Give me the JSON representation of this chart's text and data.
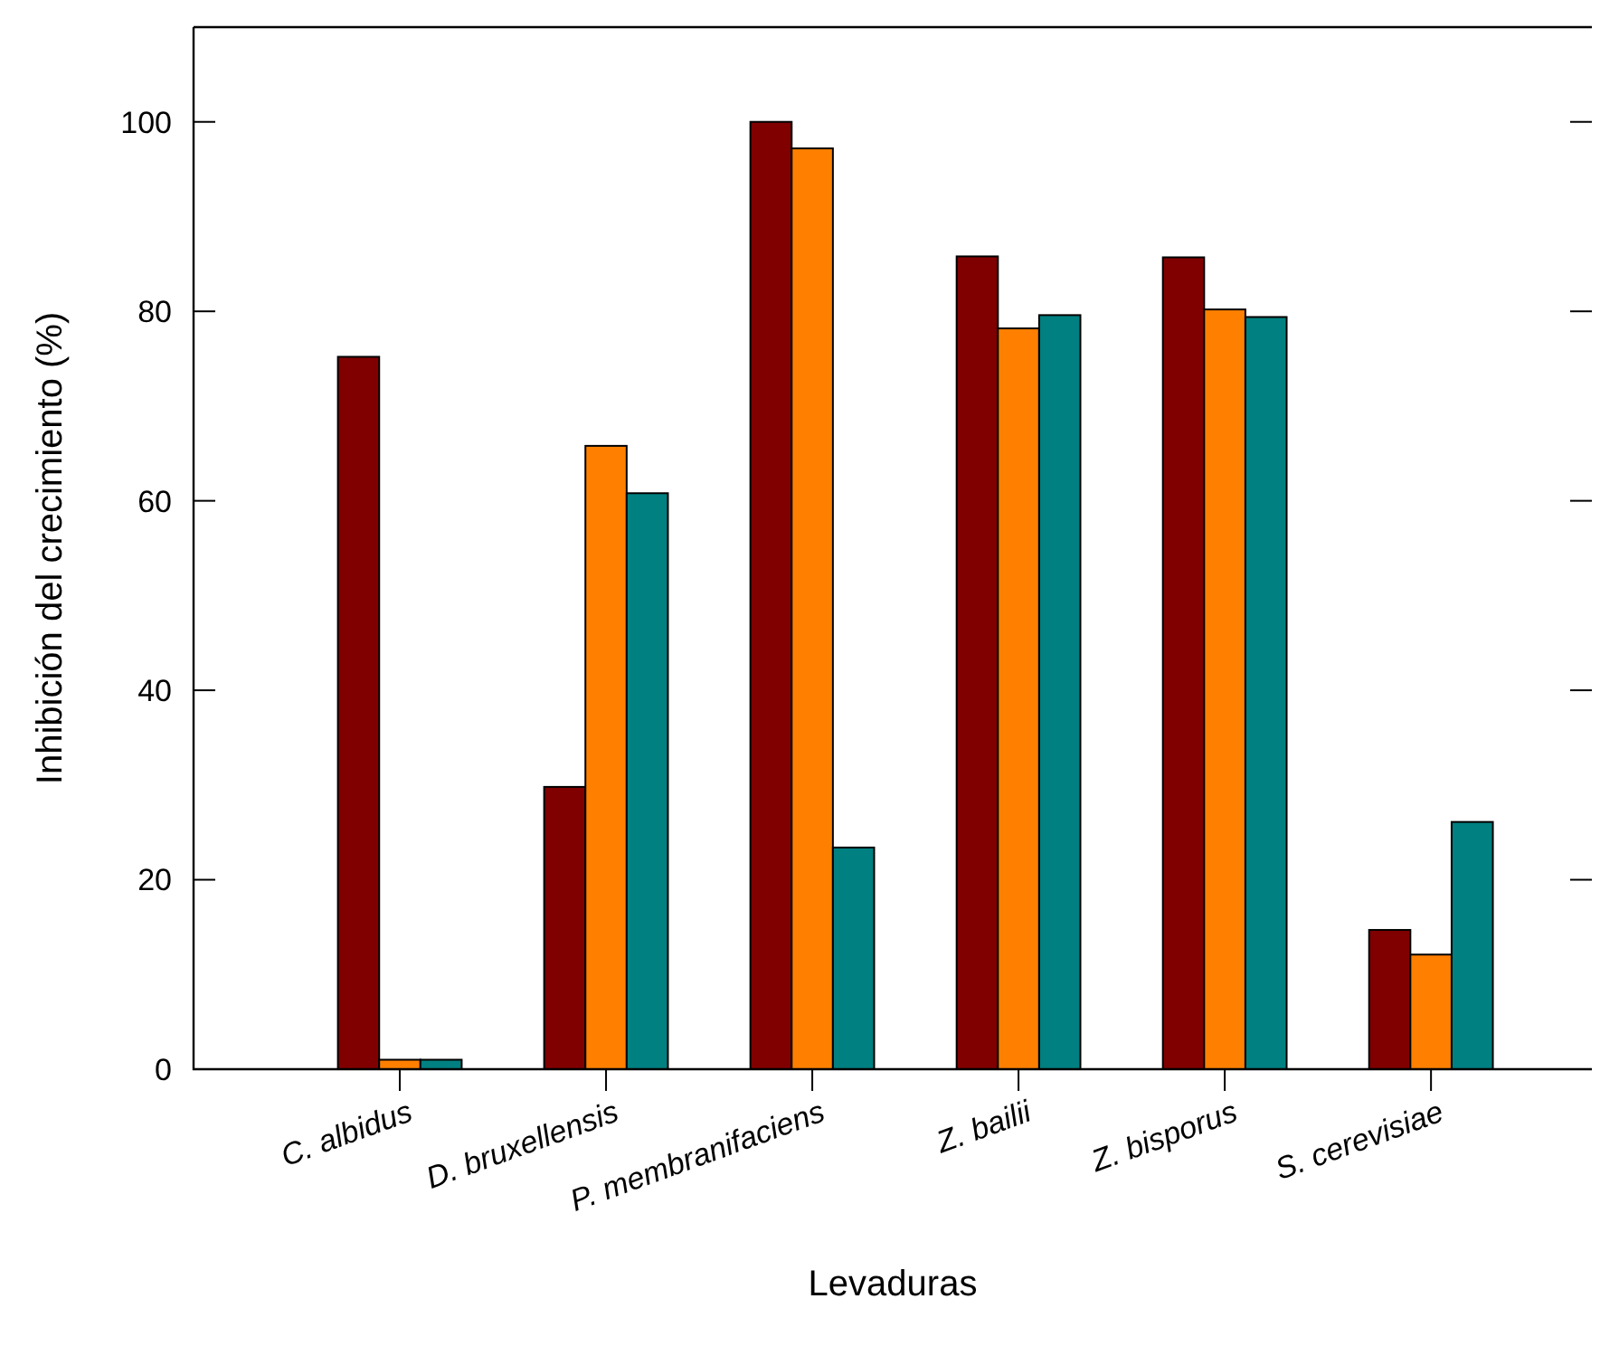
{
  "chart_data": {
    "type": "bar",
    "xlabel": "Levaduras",
    "ylabel": "Inhibición del crecimiento (%)",
    "categories": [
      "C. albidus",
      "D. bruxellensis",
      "P. membranifaciens",
      "Z. bailii",
      "Z. bisporus",
      "S. cerevisiae"
    ],
    "series": [
      {
        "color": "#800000",
        "values": [
          75.2,
          29.8,
          100,
          85.8,
          85.7,
          14.7
        ]
      },
      {
        "color": "#ff8000",
        "values": [
          1.0,
          65.8,
          97.2,
          78.2,
          80.2,
          12.1
        ]
      },
      {
        "color": "#008080",
        "values": [
          1.0,
          60.8,
          23.4,
          79.6,
          79.4,
          26.1
        ]
      }
    ],
    "ylim": [
      0,
      110
    ],
    "yticks": [
      0,
      20,
      40,
      60,
      80,
      100
    ]
  }
}
